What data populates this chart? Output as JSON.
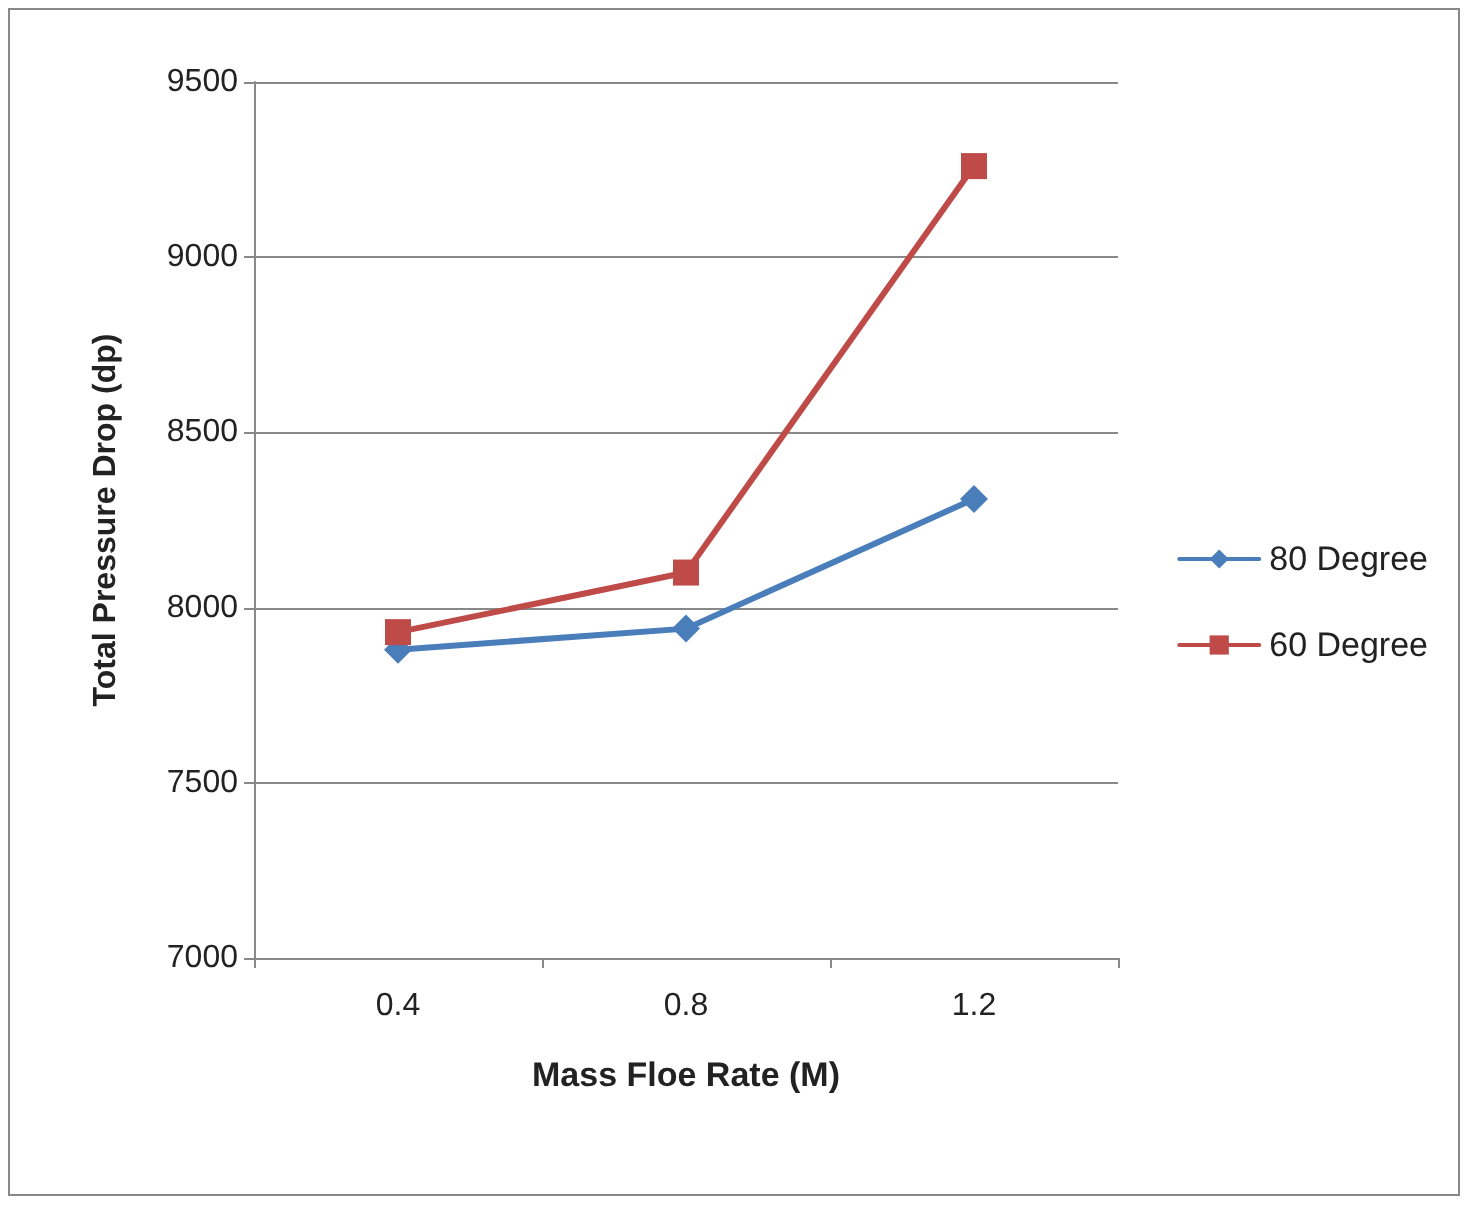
{
  "chart_data": {
    "type": "line",
    "xlabel": "Mass Floe Rate (M)",
    "ylabel": "Total Pressure Drop (dp)",
    "categories": [
      "0.4",
      "0.8",
      "1.2"
    ],
    "series": [
      {
        "name": "80 Degree",
        "color": "#4a7ebb",
        "marker": "diamond",
        "values": [
          7880,
          7940,
          8310
        ]
      },
      {
        "name": "60 Degree",
        "color": "#be4b48",
        "marker": "square",
        "values": [
          7930,
          8100,
          9260
        ]
      }
    ],
    "ylim": [
      7000,
      9500
    ],
    "yticks": [
      7000,
      7500,
      8000,
      8500,
      9000,
      9500
    ],
    "grid": "y",
    "legend": "right"
  }
}
